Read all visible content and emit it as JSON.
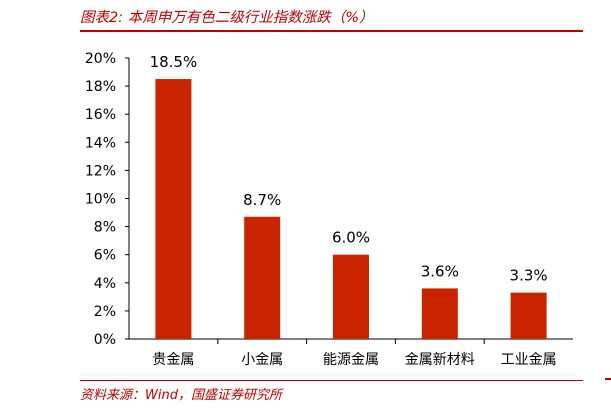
{
  "figure_title": "图表2:  本周申万有色二级行业指数涨跌（%）",
  "source": "资料来源：Wind，国盛证券研究所",
  "colors": {
    "bar": "#c82400",
    "accent": "#c00000"
  },
  "chart_data": {
    "type": "bar",
    "title": "",
    "xlabel": "",
    "ylabel": "",
    "categories": [
      "贵金属",
      "小金属",
      "能源金属",
      "金属新材料",
      "工业金属"
    ],
    "values": [
      18.5,
      8.7,
      6.0,
      3.6,
      3.3
    ],
    "data_labels": [
      "18.5%",
      "8.7%",
      "6.0%",
      "3.6%",
      "3.3%"
    ],
    "ylim": [
      0,
      20
    ],
    "yticks": [
      0,
      2,
      4,
      6,
      8,
      10,
      12,
      14,
      16,
      18,
      20
    ],
    "ytick_labels": [
      "0%",
      "2%",
      "4%",
      "6%",
      "8%",
      "10%",
      "12%",
      "14%",
      "16%",
      "18%",
      "20%"
    ],
    "grid": false,
    "legend": "none"
  }
}
